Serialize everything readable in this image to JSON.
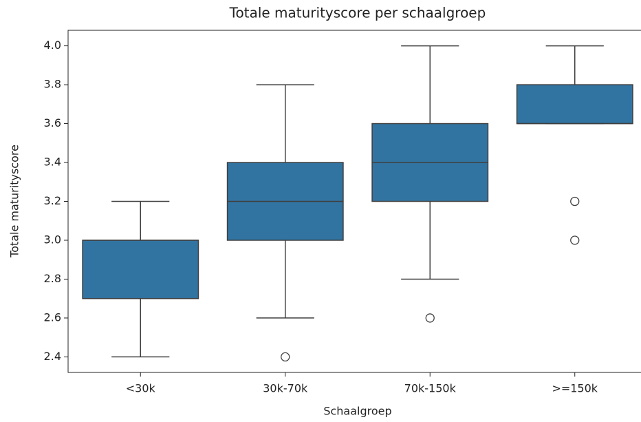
{
  "chart_data": {
    "type": "box",
    "title": "Totale maturityscore per schaalgroep",
    "xlabel": "Schaalgroep",
    "ylabel": "Totale maturityscore",
    "categories": [
      "<30k",
      "30k-70k",
      "70k-150k",
      ">=150k"
    ],
    "color": "#3274a1",
    "boxes": [
      {
        "whislo": 2.4,
        "q1": 2.7,
        "median": 3.0,
        "q3": 3.0,
        "whishi": 3.2,
        "fliers": []
      },
      {
        "whislo": 2.6,
        "q1": 3.0,
        "median": 3.2,
        "q3": 3.4,
        "whishi": 3.8,
        "fliers": [
          2.4
        ]
      },
      {
        "whislo": 2.8,
        "q1": 3.2,
        "median": 3.4,
        "q3": 3.6,
        "whishi": 4.0,
        "fliers": [
          2.6
        ]
      },
      {
        "whislo": 3.6,
        "q1": 3.6,
        "median": 3.6,
        "q3": 3.8,
        "whishi": 4.0,
        "fliers": [
          3.2,
          3.0
        ]
      }
    ],
    "ylim": [
      2.32,
      4.08
    ],
    "yticks": [
      2.4,
      2.6,
      2.8,
      {
        "value": 3.0,
        "label": "3.0"
      },
      3.2,
      3.4,
      3.6,
      3.8,
      {
        "value": 4.0,
        "label": "4.0"
      }
    ]
  }
}
